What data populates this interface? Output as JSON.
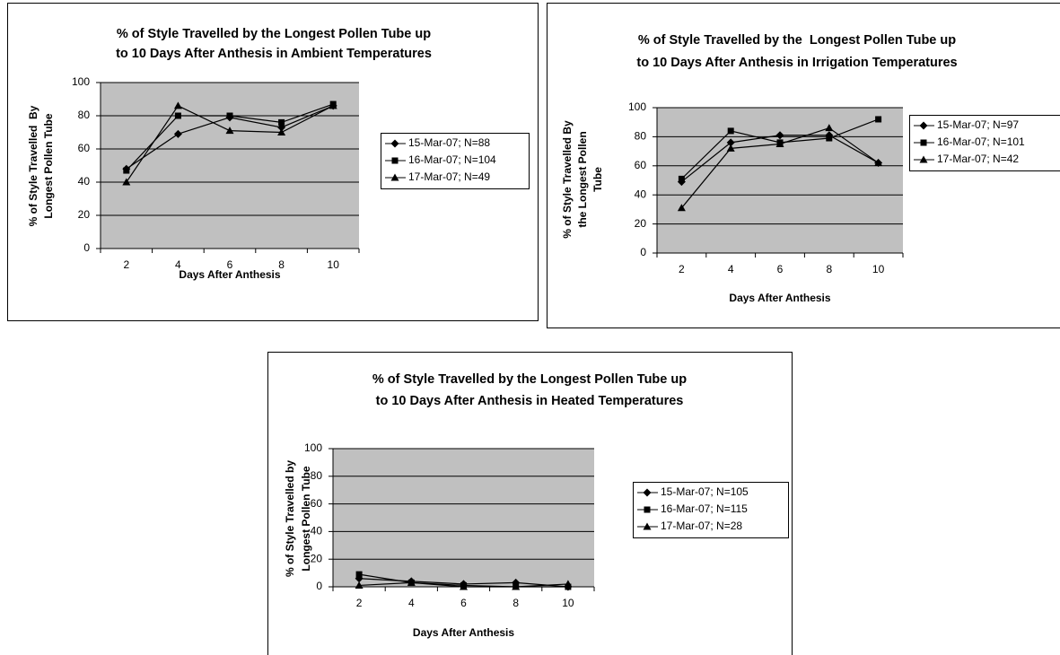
{
  "chart_data": [
    {
      "type": "line",
      "title": [
        "% of Style Travelled by the Longest Pollen Tube up",
        "to 10 Days After Anthesis in Ambient Temperatures"
      ],
      "x_label": "Days After Anthesis",
      "y_label": [
        "% of Style Travelled  By",
        "Longest Pollen Tube"
      ],
      "categories": [
        "2",
        "4",
        "6",
        "8",
        "10"
      ],
      "ylim": [
        0,
        100
      ],
      "yticks": [
        0,
        20,
        40,
        60,
        80,
        100
      ],
      "grid": true,
      "series": [
        {
          "name": "15-Mar-07; N=88",
          "color": "#000000",
          "marker": "diamond",
          "values": [
            48,
            69,
            79,
            73,
            86
          ]
        },
        {
          "name": "16-Mar-07; N=104",
          "color": "#000000",
          "marker": "square",
          "values": [
            47,
            80,
            80,
            76,
            87
          ]
        },
        {
          "name": "17-Mar-07; N=49",
          "color": "#000000",
          "marker": "triangle",
          "values": [
            40,
            86,
            71,
            70,
            86
          ]
        }
      ]
    },
    {
      "type": "line",
      "title": [
        "% of Style Travelled by the  Longest Pollen Tube up",
        "to 10 Days After Anthesis in Irrigation Temperatures"
      ],
      "x_label": "Days After Anthesis",
      "y_label": [
        "% of Style Travelled By",
        "the Longest Pollen",
        "Tube"
      ],
      "categories": [
        "2",
        "4",
        "6",
        "8",
        "10"
      ],
      "ylim": [
        0,
        100
      ],
      "yticks": [
        0,
        20,
        40,
        60,
        80,
        100
      ],
      "grid": true,
      "series": [
        {
          "name": "15-Mar-07; N=97",
          "color": "#000000",
          "marker": "diamond",
          "values": [
            49,
            76,
            81,
            81,
            62
          ]
        },
        {
          "name": "16-Mar-07; N=101",
          "color": "#000000",
          "marker": "square",
          "values": [
            51,
            84,
            76,
            79,
            92
          ]
        },
        {
          "name": "17-Mar-07; N=42",
          "color": "#000000",
          "marker": "triangle",
          "values": [
            31,
            72,
            75,
            86,
            62
          ]
        }
      ]
    },
    {
      "type": "line",
      "title": [
        "% of Style Travelled by the Longest Pollen Tube up",
        "to 10 Days After Anthesis in Heated Temperatures"
      ],
      "x_label": "Days After Anthesis",
      "y_label": [
        "% of Style Travelled by",
        "Longest Pollen Tube"
      ],
      "categories": [
        "2",
        "4",
        "6",
        "8",
        "10"
      ],
      "ylim": [
        0,
        100
      ],
      "yticks": [
        0,
        20,
        40,
        60,
        80,
        100
      ],
      "grid": true,
      "series": [
        {
          "name": "15-Mar-07; N=105",
          "color": "#000000",
          "marker": "diamond",
          "values": [
            6,
            4,
            2,
            3,
            0
          ]
        },
        {
          "name": "16-Mar-07; N=115",
          "color": "#000000",
          "marker": "square",
          "values": [
            9,
            3,
            1,
            0,
            0
          ]
        },
        {
          "name": "17-Mar-07; N=28",
          "color": "#000000",
          "marker": "triangle",
          "values": [
            1,
            3,
            0,
            0,
            2
          ]
        }
      ]
    }
  ]
}
